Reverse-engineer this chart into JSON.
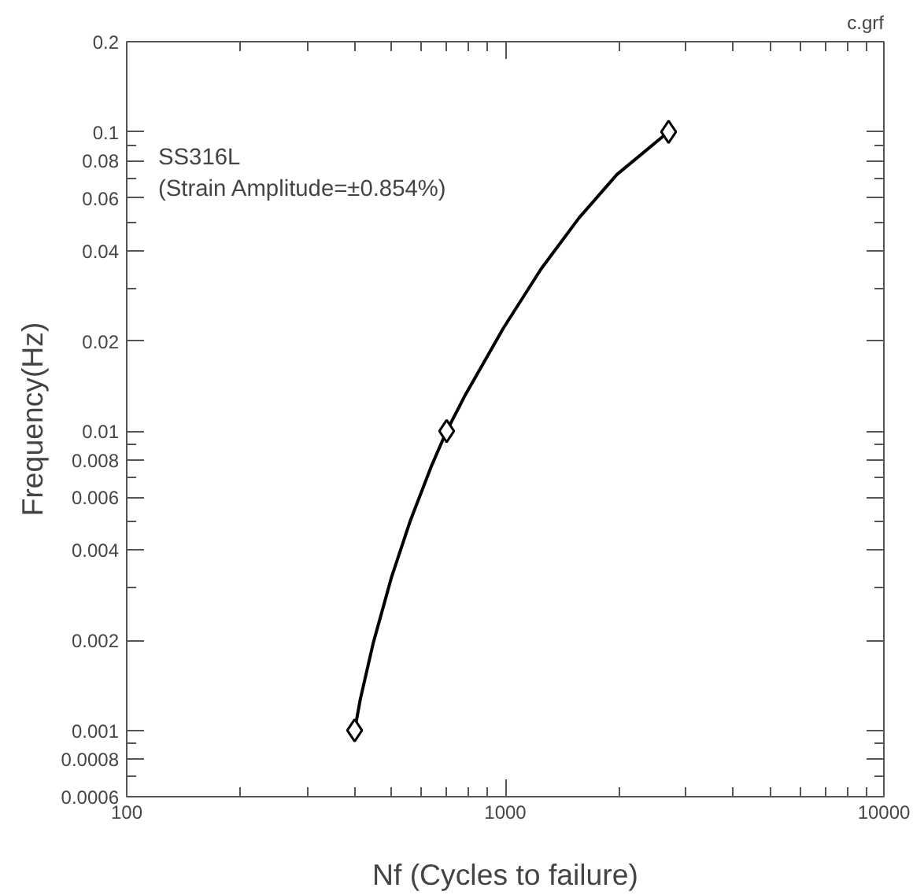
{
  "chart_data": {
    "type": "scatter",
    "xlabel": "Nf (Cycles to failure)",
    "ylabel": "Frequency(Hz)",
    "annotations": [
      "c.grf",
      "SS316L",
      "(Strain Amplitude=±0.854%)"
    ],
    "series": [
      {
        "type": "line",
        "marker": "none",
        "color": "#000000",
        "x": [
          400,
          414,
          448,
          501,
          560,
          637,
          700,
          785,
          989,
          1245,
          1567,
          1972,
          2700
        ],
        "values": [
          0.001,
          0.00127,
          0.00196,
          0.00326,
          0.00498,
          0.0076,
          0.01,
          0.01324,
          0.0221,
          0.0349,
          0.0516,
          0.072,
          0.1
        ]
      },
      {
        "marker": "diamond",
        "color": "#000000",
        "x": [
          400,
          700,
          2700
        ],
        "values": [
          0.001,
          0.01,
          0.1
        ]
      }
    ],
    "log": "xy",
    "line_style": "solid",
    "grid": false,
    "xlim": [
      100,
      10000
    ],
    "ylim": [
      0.0006,
      0.2
    ],
    "xticks": [
      100,
      {
        "value": 200,
        "label": null
      },
      {
        "value": 300,
        "label": null
      },
      {
        "value": 400,
        "label": null
      },
      {
        "value": 500,
        "label": null
      },
      {
        "value": 600,
        "label": null
      },
      {
        "value": 700,
        "label": null
      },
      {
        "value": 800,
        "label": null
      },
      {
        "value": 900,
        "label": null
      },
      1000,
      {
        "value": 2000,
        "label": null
      },
      {
        "value": 3000,
        "label": null
      },
      {
        "value": 4000,
        "label": null
      },
      {
        "value": 5000,
        "label": null
      },
      {
        "value": 6000,
        "label": null
      },
      {
        "value": 7000,
        "label": null
      },
      {
        "value": 8000,
        "label": null
      },
      {
        "value": 9000,
        "label": null
      },
      10000
    ],
    "yticks": [
      0.0006,
      {
        "value": 0.0007,
        "label": null
      },
      0.0008,
      {
        "value": 0.0009,
        "label": null
      },
      0.001,
      0.002,
      {
        "value": 0.003,
        "label": null
      },
      0.004,
      {
        "value": 0.005,
        "label": null
      },
      0.006,
      {
        "value": 0.007,
        "label": null
      },
      0.008,
      {
        "value": 0.009,
        "label": null
      },
      0.01,
      0.02,
      {
        "value": 0.03,
        "label": null
      },
      0.04,
      {
        "value": 0.05,
        "label": null
      },
      0.06,
      {
        "value": 0.07,
        "label": null
      },
      0.08,
      {
        "value": 0.09,
        "label": null
      },
      0.1,
      0.2
    ]
  }
}
